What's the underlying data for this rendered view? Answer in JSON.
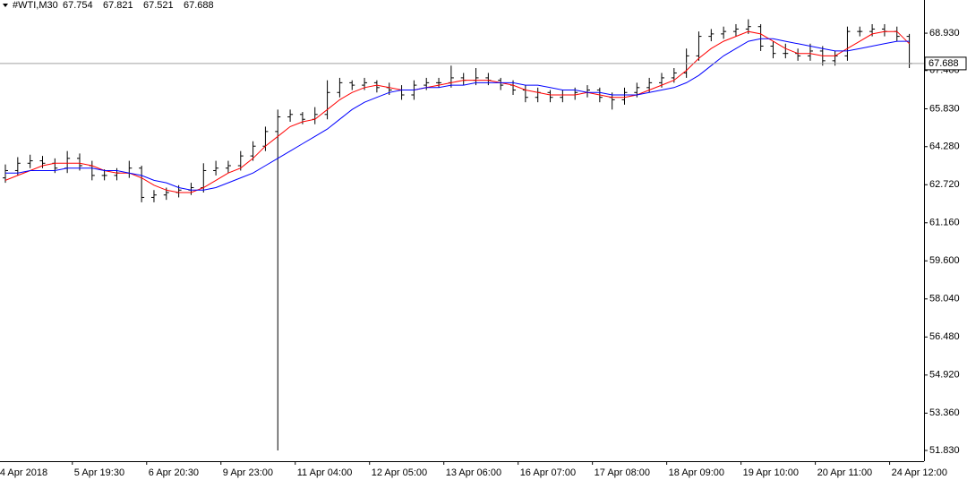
{
  "chart_data": {
    "type": "ohlc",
    "symbol": "#WTI,M30",
    "header_values": [
      67.754,
      67.821,
      67.521,
      67.688
    ],
    "current_price": 67.688,
    "current_price_label": "67.688",
    "categories": [
      null,
      "4 Apr 2018",
      null,
      null,
      null,
      null,
      null,
      "5 Apr 19:30",
      null,
      null,
      null,
      null,
      null,
      "6 Apr 20:30",
      null,
      null,
      null,
      null,
      null,
      "9 Apr 23:00",
      null,
      null,
      null,
      null,
      null,
      "11 Apr 04:00",
      null,
      null,
      null,
      null,
      null,
      "12 Apr 05:00",
      null,
      null,
      null,
      null,
      null,
      "13 Apr 06:00",
      null,
      null,
      null,
      null,
      null,
      "16 Apr 07:00",
      null,
      null,
      null,
      null,
      null,
      "17 Apr 08:00",
      null,
      null,
      null,
      null,
      null,
      "18 Apr 09:00",
      null,
      null,
      null,
      null,
      null,
      "19 Apr 10:00",
      null,
      null,
      null,
      null,
      null,
      "20 Apr 11:00",
      null,
      null,
      null,
      null,
      null,
      "24 Apr 12:00"
    ],
    "open": [
      63.0,
      63.3,
      63.6,
      63.7,
      63.6,
      63.4,
      63.8,
      63.5,
      63.1,
      63.1,
      63.2,
      63.4,
      62.2,
      62.3,
      62.4,
      62.5,
      62.6,
      63.3,
      63.4,
      63.5,
      63.9,
      64.3,
      64.9,
      65.5,
      65.6,
      65.4,
      65.6,
      66.5,
      66.9,
      66.8,
      66.9,
      66.7,
      66.6,
      66.4,
      66.8,
      66.9,
      66.9,
      67.1,
      67.0,
      67.1,
      67.0,
      66.8,
      66.6,
      66.3,
      66.5,
      66.3,
      66.4,
      66.5,
      66.6,
      66.3,
      66.2,
      66.5,
      66.7,
      66.9,
      67.1,
      67.3,
      68.0,
      68.8,
      68.9,
      69.0,
      69.1,
      69.2,
      68.4,
      68.1,
      68.1,
      68.0,
      68.2,
      67.8,
      68.0,
      69.0,
      69.0,
      69.1,
      69.0,
      68.8
    ],
    "high": [
      63.55,
      63.85,
      63.95,
      63.9,
      63.8,
      64.1,
      64.0,
      63.7,
      63.35,
      63.4,
      63.7,
      63.5,
      62.5,
      62.6,
      62.7,
      62.8,
      63.6,
      63.7,
      63.7,
      64.1,
      64.5,
      65.1,
      65.8,
      65.8,
      65.7,
      65.9,
      67.0,
      67.1,
      67.0,
      67.1,
      67.0,
      66.9,
      66.8,
      67.0,
      67.1,
      67.1,
      67.6,
      67.3,
      67.5,
      67.3,
      67.1,
      67.0,
      66.8,
      66.7,
      66.6,
      66.6,
      66.7,
      66.8,
      66.7,
      66.5,
      66.7,
      66.9,
      67.1,
      67.3,
      67.5,
      68.3,
      69.0,
      69.1,
      69.2,
      69.3,
      69.5,
      69.3,
      68.6,
      68.5,
      68.3,
      68.5,
      68.4,
      68.2,
      69.2,
      69.2,
      69.3,
      69.3,
      69.2,
      68.9
    ],
    "low": [
      62.8,
      63.1,
      63.4,
      63.4,
      63.2,
      63.2,
      63.3,
      62.9,
      62.9,
      62.9,
      63.0,
      62.0,
      62.0,
      62.1,
      62.2,
      62.3,
      62.4,
      63.1,
      63.2,
      63.3,
      63.7,
      64.1,
      51.83,
      65.3,
      65.2,
      65.2,
      65.4,
      66.3,
      66.6,
      66.6,
      66.5,
      66.4,
      66.2,
      66.2,
      66.6,
      66.7,
      66.7,
      66.8,
      66.8,
      66.8,
      66.6,
      66.4,
      66.1,
      66.1,
      66.1,
      66.1,
      66.2,
      66.3,
      66.1,
      65.8,
      66.0,
      66.3,
      66.5,
      66.7,
      66.9,
      67.1,
      67.8,
      68.6,
      68.7,
      68.8,
      68.9,
      68.2,
      67.9,
      67.9,
      67.8,
      67.8,
      67.6,
      67.6,
      67.8,
      68.8,
      68.8,
      68.8,
      68.6,
      67.5
    ],
    "close": [
      63.3,
      63.6,
      63.7,
      63.6,
      63.4,
      63.8,
      63.5,
      63.1,
      63.1,
      63.2,
      63.4,
      62.2,
      62.3,
      62.4,
      62.5,
      62.6,
      63.3,
      63.4,
      63.5,
      63.9,
      64.3,
      64.9,
      65.5,
      65.6,
      65.4,
      65.6,
      66.5,
      66.9,
      66.8,
      66.9,
      66.7,
      66.6,
      66.4,
      66.8,
      66.9,
      66.9,
      67.1,
      67.0,
      67.1,
      67.0,
      66.8,
      66.6,
      66.3,
      66.5,
      66.3,
      66.4,
      66.5,
      66.6,
      66.3,
      66.2,
      66.5,
      66.7,
      66.9,
      67.1,
      67.3,
      68.0,
      68.8,
      68.9,
      69.0,
      69.1,
      69.2,
      68.4,
      68.1,
      68.1,
      68.0,
      68.2,
      67.8,
      68.0,
      69.0,
      69.0,
      69.1,
      69.0,
      68.8,
      67.688
    ],
    "color": "#000000",
    "series": [
      {
        "color": "#ff0000",
        "values": [
          62.9,
          63.1,
          63.3,
          63.5,
          63.6,
          63.6,
          63.6,
          63.5,
          63.3,
          63.2,
          63.2,
          63.0,
          62.7,
          62.5,
          62.4,
          62.4,
          62.6,
          62.9,
          63.2,
          63.4,
          63.8,
          64.3,
          64.7,
          65.1,
          65.3,
          65.4,
          65.8,
          66.2,
          66.5,
          66.7,
          66.8,
          66.7,
          66.6,
          66.6,
          66.7,
          66.8,
          66.9,
          67.0,
          67.0,
          67.0,
          66.9,
          66.8,
          66.6,
          66.5,
          66.4,
          66.4,
          66.4,
          66.5,
          66.4,
          66.3,
          66.3,
          66.4,
          66.6,
          66.8,
          67.0,
          67.4,
          67.9,
          68.3,
          68.6,
          68.8,
          69.0,
          68.9,
          68.6,
          68.3,
          68.1,
          68.1,
          68.0,
          68.0,
          68.3,
          68.6,
          68.9,
          69.0,
          69.0,
          68.5
        ]
      },
      {
        "color": "#0000ff",
        "values": [
          63.2,
          63.2,
          63.3,
          63.3,
          63.3,
          63.4,
          63.4,
          63.4,
          63.3,
          63.3,
          63.2,
          63.1,
          62.9,
          62.8,
          62.6,
          62.5,
          62.5,
          62.6,
          62.8,
          63.0,
          63.2,
          63.5,
          63.8,
          64.1,
          64.4,
          64.7,
          65.0,
          65.4,
          65.8,
          66.1,
          66.3,
          66.5,
          66.6,
          66.6,
          66.7,
          66.7,
          66.8,
          66.8,
          66.9,
          66.9,
          66.9,
          66.9,
          66.8,
          66.8,
          66.7,
          66.6,
          66.6,
          66.5,
          66.5,
          66.4,
          66.4,
          66.4,
          66.5,
          66.6,
          66.7,
          66.9,
          67.2,
          67.6,
          68.0,
          68.3,
          68.6,
          68.7,
          68.7,
          68.6,
          68.5,
          68.4,
          68.3,
          68.2,
          68.2,
          68.3,
          68.4,
          68.5,
          68.6,
          68.6
        ]
      }
    ],
    "ylim": [
      51.39,
      70.29
    ],
    "yticks": [
      {
        "value": 51.83,
        "label": "51.830"
      },
      {
        "value": 53.36,
        "label": "53.360"
      },
      {
        "value": 54.92,
        "label": "54.920"
      },
      {
        "value": 56.48,
        "label": "56.480"
      },
      {
        "value": 58.04,
        "label": "58.040"
      },
      {
        "value": 59.6,
        "label": "59.600"
      },
      {
        "value": 61.16,
        "label": "61.160"
      },
      {
        "value": 62.72,
        "label": "62.720"
      },
      {
        "value": 64.28,
        "label": "64.280"
      },
      {
        "value": 65.83,
        "label": "65.830"
      },
      {
        "value": 67.4,
        "label": "67.400"
      },
      {
        "value": 68.93,
        "label": "68.930"
      }
    ],
    "grid": false
  }
}
